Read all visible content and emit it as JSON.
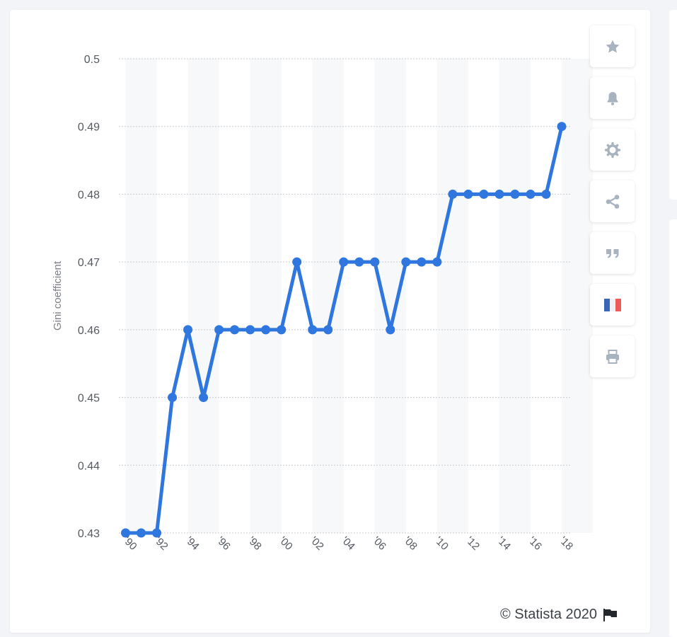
{
  "chart_data": {
    "type": "line",
    "ylabel": "Gini coefficient",
    "xlabel": "",
    "ylim": [
      0.43,
      0.5
    ],
    "yticks": [
      "0.5",
      "0.49",
      "0.48",
      "0.47",
      "0.46",
      "0.45",
      "0.44",
      "0.43"
    ],
    "ytick_values": [
      0.5,
      0.49,
      0.48,
      0.47,
      0.46,
      0.45,
      0.44,
      0.43
    ],
    "x": [
      1990,
      1991,
      1992,
      1993,
      1994,
      1995,
      1996,
      1997,
      1998,
      1999,
      2000,
      2001,
      2002,
      2003,
      2004,
      2005,
      2006,
      2007,
      2008,
      2009,
      2010,
      2011,
      2012,
      2013,
      2014,
      2015,
      2016,
      2017,
      2018
    ],
    "xtick_labels": [
      "'90",
      "'92",
      "'94",
      "'96",
      "'98",
      "'00",
      "'02",
      "'04",
      "'06",
      "'08",
      "'10",
      "'12",
      "'14",
      "'16",
      "'18"
    ],
    "xtick_values": [
      1990,
      1992,
      1994,
      1996,
      1998,
      2000,
      2002,
      2004,
      2006,
      2008,
      2010,
      2012,
      2014,
      2016,
      2018
    ],
    "series": [
      {
        "values": [
          0.43,
          0.43,
          0.43,
          0.45,
          0.46,
          0.45,
          0.46,
          0.46,
          0.46,
          0.46,
          0.46,
          0.47,
          0.46,
          0.46,
          0.47,
          0.47,
          0.47,
          0.46,
          0.47,
          0.47,
          0.47,
          0.48,
          0.48,
          0.48,
          0.48,
          0.48,
          0.48,
          0.48,
          0.49
        ],
        "color": "#2f76de"
      }
    ],
    "grid": true
  },
  "toolbar": {
    "buttons": [
      {
        "icon": "star-icon",
        "label": "favorite"
      },
      {
        "icon": "bell-icon",
        "label": "notification"
      },
      {
        "icon": "gear-icon",
        "label": "settings"
      },
      {
        "icon": "share-icon",
        "label": "share"
      },
      {
        "icon": "quote-icon",
        "label": "cite"
      },
      {
        "icon": "french-flag-icon",
        "label": "language"
      },
      {
        "icon": "print-icon",
        "label": "print"
      }
    ]
  },
  "credit": {
    "text": "© Statista 2020"
  },
  "colors": {
    "line": "#2f76de",
    "icon": "#a9b3bf",
    "band": "#f7f8f9"
  }
}
